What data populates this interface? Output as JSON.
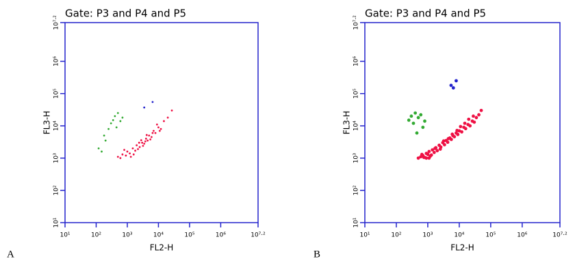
{
  "chart_data": [
    {
      "type": "scatter",
      "panel_label": "A",
      "title": "Gate: P3 and P4 and P5",
      "xlabel": "FL2-H",
      "ylabel": "FL3-H",
      "log_x": true,
      "log_y": true,
      "axis_color": "#2222cc",
      "xlim": [
        10,
        15848932
      ],
      "ylim": [
        10,
        15848932
      ],
      "xticks": [
        {
          "value": 10,
          "label": "10¹"
        },
        {
          "value": 100,
          "label": "10²"
        },
        {
          "value": 1000,
          "label": "10³"
        },
        {
          "value": 10000,
          "label": "10⁴"
        },
        {
          "value": 100000,
          "label": "10⁵"
        },
        {
          "value": 1000000,
          "label": "10⁶"
        },
        {
          "value": 15848932,
          "label": "10⁷·²"
        }
      ],
      "yticks": [
        {
          "value": 10,
          "label": "10¹"
        },
        {
          "value": 100,
          "label": "10²"
        },
        {
          "value": 1000,
          "label": "10³"
        },
        {
          "value": 10000,
          "label": "10⁴"
        },
        {
          "value": 100000,
          "label": "10⁵"
        },
        {
          "value": 1000000,
          "label": "10⁶"
        },
        {
          "value": 15848932,
          "label": "10⁷·²"
        }
      ],
      "series": [
        {
          "color": "#ee1144",
          "x": [
            500,
            700,
            900,
            1000,
            1200,
            1500,
            1800,
            2000,
            2500,
            3000,
            3500,
            4000,
            4500,
            5000,
            6000,
            7000,
            8000,
            10000,
            12000,
            15000,
            20000,
            27000,
            600,
            800,
            1300,
            2200,
            2800,
            3200,
            4200,
            5500,
            6500,
            9000,
            11000,
            1600,
            2400,
            3800
          ],
          "values": [
            1100,
            1300,
            1200,
            1600,
            1400,
            2000,
            1700,
            2500,
            2200,
            3000,
            2800,
            4000,
            3500,
            5000,
            4500,
            7000,
            6000,
            9000,
            8000,
            14000,
            18000,
            30000,
            1000,
            1800,
            1100,
            1900,
            3600,
            2400,
            5200,
            3800,
            6000,
            11000,
            7000,
            1300,
            3000,
            3300
          ]
        },
        {
          "color": "#33aa33",
          "x": [
            120,
            150,
            200,
            250,
            300,
            350,
            400,
            500,
            600,
            700,
            180,
            450
          ],
          "values": [
            2000,
            1600,
            3500,
            8000,
            12000,
            15000,
            20000,
            25000,
            14000,
            18000,
            5000,
            9000
          ]
        },
        {
          "color": "#2222cc",
          "x": [
            3500,
            6500
          ],
          "values": [
            37000,
            55000
          ]
        }
      ]
    },
    {
      "type": "scatter",
      "panel_label": "B",
      "title": "Gate: P3 and P4 and P5",
      "xlabel": "FL2-H",
      "ylabel": "FL3-H",
      "log_x": true,
      "log_y": true,
      "axis_color": "#2222cc",
      "xlim": [
        10,
        15848932
      ],
      "ylim": [
        10,
        15848932
      ],
      "xticks": [
        {
          "value": 10,
          "label": "10¹"
        },
        {
          "value": 100,
          "label": "10²"
        },
        {
          "value": 1000,
          "label": "10³"
        },
        {
          "value": 10000,
          "label": "10⁴"
        },
        {
          "value": 100000,
          "label": "10⁵"
        },
        {
          "value": 1000000,
          "label": "10⁶"
        },
        {
          "value": 15848932,
          "label": "10⁷·²"
        }
      ],
      "yticks": [
        {
          "value": 10,
          "label": "10¹"
        },
        {
          "value": 100,
          "label": "10²"
        },
        {
          "value": 1000,
          "label": "10³"
        },
        {
          "value": 10000,
          "label": "10⁴"
        },
        {
          "value": 100000,
          "label": "10⁵"
        },
        {
          "value": 1000000,
          "label": "10⁶"
        },
        {
          "value": 15848932,
          "label": "10⁷·²"
        }
      ],
      "series": [
        {
          "color": "#ee1144",
          "x": [
            500,
            600,
            700,
            800,
            900,
            1000,
            1100,
            1200,
            1400,
            1600,
            1800,
            2000,
            2300,
            2600,
            3000,
            3400,
            3800,
            4300,
            5000,
            5600,
            6300,
            7000,
            8000,
            9000,
            10000,
            12000,
            14000,
            16000,
            19000,
            22000,
            26000,
            30000,
            35000,
            42000,
            50000,
            650,
            900,
            1300,
            1700,
            2500,
            3200,
            4500,
            6000,
            8500,
            11000,
            15000,
            20000,
            28000,
            1100,
            750
          ],
          "values": [
            1000,
            1100,
            1200,
            1050,
            1400,
            1300,
            1600,
            1150,
            1800,
            1500,
            2100,
            1700,
            2500,
            2200,
            3000,
            2600,
            3500,
            3100,
            4200,
            3800,
            5000,
            4600,
            6000,
            5400,
            7000,
            6500,
            9000,
            8200,
            11000,
            10000,
            14000,
            13000,
            18000,
            22000,
            30000,
            1300,
            1000,
            1250,
            2000,
            1900,
            3400,
            4000,
            5500,
            7200,
            9500,
            12000,
            16000,
            20000,
            1000,
            1050
          ]
        },
        {
          "color": "#33aa33",
          "x": [
            250,
            300,
            350,
            400,
            500,
            600,
            700,
            800,
            450
          ],
          "values": [
            15000,
            20000,
            12000,
            25000,
            18000,
            22000,
            9000,
            14000,
            6000
          ]
        },
        {
          "color": "#2222cc",
          "x": [
            5500,
            6500,
            8000
          ],
          "values": [
            180000,
            150000,
            250000
          ]
        }
      ]
    }
  ]
}
